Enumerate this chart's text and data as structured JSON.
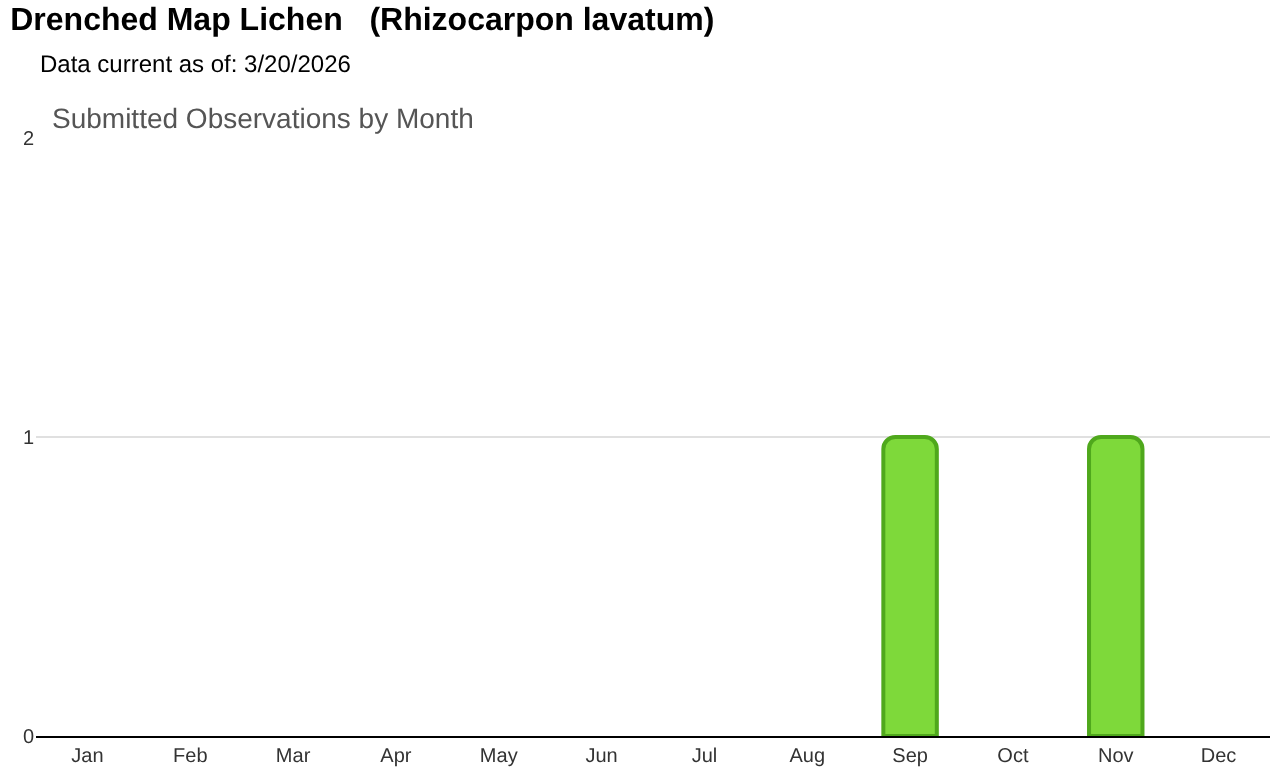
{
  "chart_data": {
    "type": "bar",
    "title": "Drenched Map Lichen   (Rhizocarpon lavatum)",
    "subtitle": "Data current as of: 3/20/2026",
    "annotations": [
      "Submitted Observations by Month"
    ],
    "categories": [
      "Jan",
      "Feb",
      "Mar",
      "Apr",
      "May",
      "Jun",
      "Jul",
      "Aug",
      "Sep",
      "Oct",
      "Nov",
      "Dec"
    ],
    "values": [
      0,
      0,
      0,
      0,
      0,
      0,
      0,
      0,
      1,
      0,
      1,
      0
    ],
    "color": "#7ed93a",
    "ylim": [
      0,
      2
    ],
    "yticks": [
      0,
      1,
      2
    ],
    "grid": "y"
  }
}
